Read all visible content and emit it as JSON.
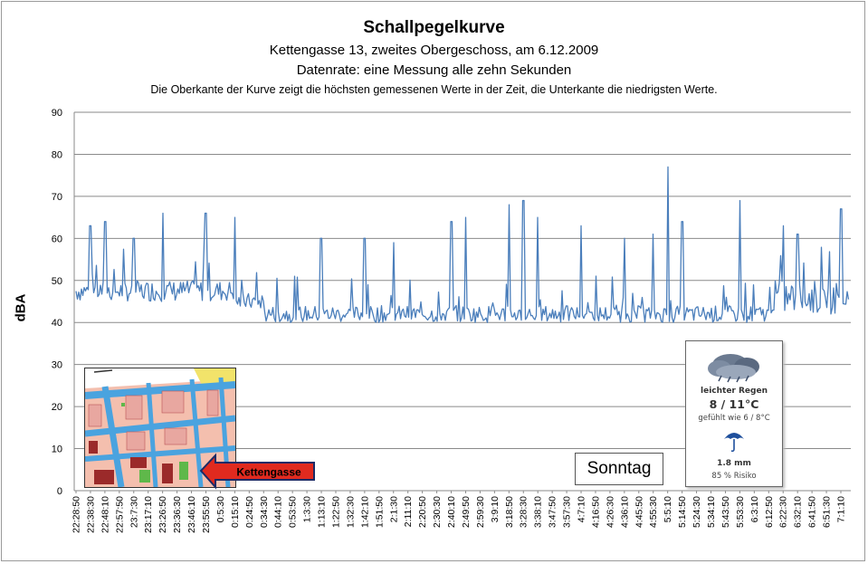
{
  "chart_data": {
    "type": "line",
    "title": "Schallpegelkurve",
    "subtitle_lines": [
      "Kettengasse 13, zweites Obergeschoss, am 6.12.2009",
      "Datenrate: eine Messung alle zehn Sekunden",
      "Die Oberkante der Kurve zeigt die höchsten gemessenen Werte  in der Zeit, die Unterkante  die niedrigsten Werte."
    ],
    "ylabel": "dBA",
    "xlabel": "",
    "ylim": [
      0,
      90
    ],
    "yticks": [
      0,
      10,
      20,
      30,
      40,
      50,
      60,
      70,
      80,
      90
    ],
    "grid": true,
    "xtick_labels": [
      "22:28:50",
      "22:38:30",
      "22:48:10",
      "22:57:50",
      "23:7:30",
      "23:17:10",
      "23:26:50",
      "23:36:30",
      "23:46:10",
      "23:55:50",
      "0:5:30",
      "0:15:10",
      "0:24:50",
      "0:34:30",
      "0:44:10",
      "0:53:50",
      "1:3:30",
      "1:13:10",
      "1:22:50",
      "1:32:30",
      "1:42:10",
      "1:51:50",
      "2:1:30",
      "2:11:10",
      "2:20:50",
      "2:30:30",
      "2:40:10",
      "2:49:50",
      "2:59:30",
      "3:9:10",
      "3:18:50",
      "3:28:30",
      "3:38:10",
      "3:47:50",
      "3:57:30",
      "4:7:10",
      "4:16:50",
      "4:26:30",
      "4:36:10",
      "4:45:50",
      "4:55:30",
      "5:5:10",
      "5:14:50",
      "5:24:30",
      "5:34:10",
      "5:43:50",
      "5:53:30",
      "6:3:10",
      "6:12:50",
      "6:22:30",
      "6:32:10",
      "6:41:50",
      "6:51:30",
      "7:1:10"
    ],
    "series": [
      {
        "name": "",
        "color": "#4a7ebb",
        "segments": [
          {
            "from": "22:28:50",
            "to": "0:15:10",
            "baseline_dBA": [
              45,
              50
            ]
          },
          {
            "from": "0:15:10",
            "to": "0:34:30",
            "baseline_dBA": [
              43,
              47
            ]
          },
          {
            "from": "0:34:30",
            "to": "6:12:50",
            "baseline_dBA": [
              40,
              44
            ]
          },
          {
            "from": "6:12:50",
            "to": "7:1:10",
            "baseline_dBA": [
              42,
              50
            ]
          }
        ],
        "peaks": [
          {
            "x": "22:38:30",
            "y": 63
          },
          {
            "x": "22:48:10",
            "y": 64
          },
          {
            "x": "23:7:30",
            "y": 60
          },
          {
            "x": "23:26:50",
            "y": 66
          },
          {
            "x": "23:55:50",
            "y": 66
          },
          {
            "x": "0:15:10",
            "y": 65
          },
          {
            "x": "1:13:10",
            "y": 60
          },
          {
            "x": "1:42:10",
            "y": 60
          },
          {
            "x": "2:1:30",
            "y": 59
          },
          {
            "x": "2:40:10",
            "y": 64
          },
          {
            "x": "2:49:50",
            "y": 65
          },
          {
            "x": "3:18:50",
            "y": 68
          },
          {
            "x": "3:28:30",
            "y": 69
          },
          {
            "x": "3:38:10",
            "y": 65
          },
          {
            "x": "4:7:10",
            "y": 63
          },
          {
            "x": "4:36:10",
            "y": 60
          },
          {
            "x": "4:55:30",
            "y": 61
          },
          {
            "x": "5:5:10",
            "y": 77
          },
          {
            "x": "5:14:50",
            "y": 64
          },
          {
            "x": "5:53:30",
            "y": 69
          },
          {
            "x": "6:22:30",
            "y": 63
          },
          {
            "x": "6:32:10",
            "y": 61
          },
          {
            "x": "7:1:10",
            "y": 67
          }
        ]
      }
    ]
  },
  "inset_map": {
    "label": "Kettengasse",
    "arrow_color": "#d92020"
  },
  "weather": {
    "icon": "rain-cloud-icon",
    "condition": "leichter Regen",
    "temperature": "8 / 11°C",
    "feels_like": "gefühlt wie 6 / 8°C",
    "umbrella_icon": "umbrella-icon",
    "precipitation": "1.8 mm",
    "risk": "85 % Risiko"
  },
  "day_label": "Sonntag"
}
